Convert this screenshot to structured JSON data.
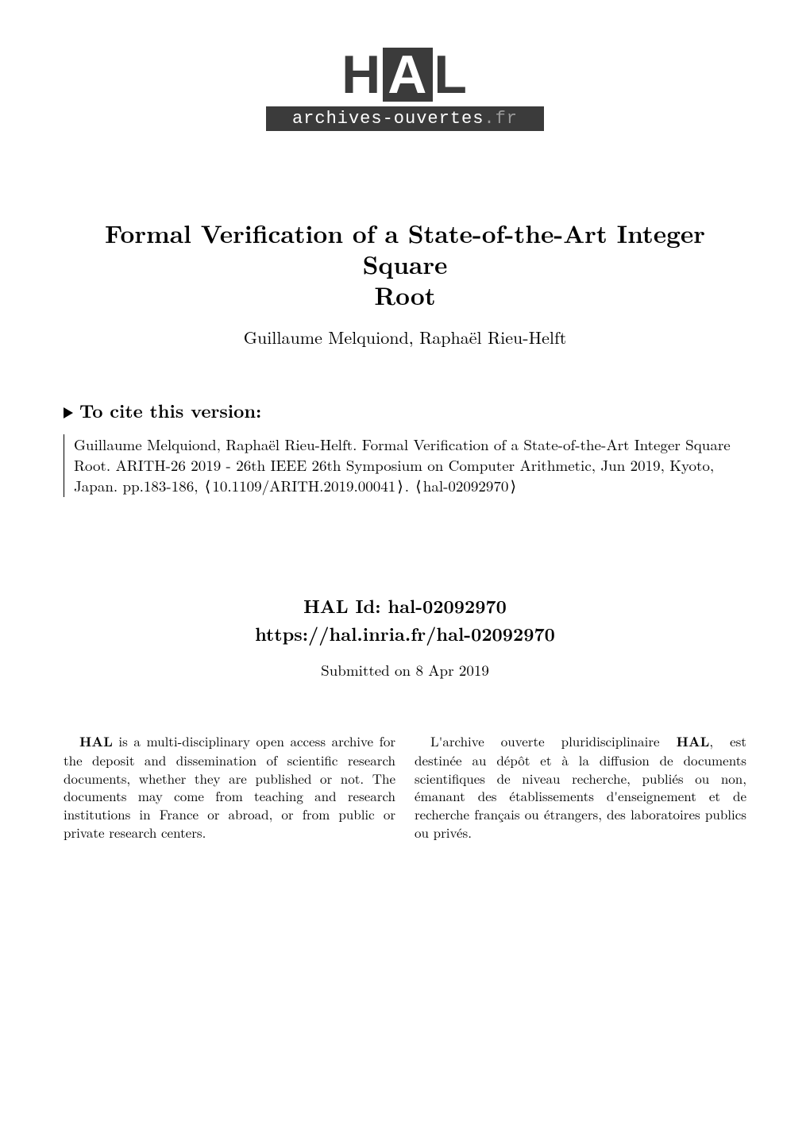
{
  "logo": {
    "letters_pre": "H",
    "letters_box": "A",
    "letters_post": "L",
    "tagline_main": "archives-ouvertes",
    "tagline_suffix": ".fr"
  },
  "title_line1": "Formal Verification of a State-of-the-Art Integer Square",
  "title_line2": "Root",
  "authors": "Guillaume Melquiond, Raphaël Rieu-Helft",
  "cite": {
    "heading": "To cite this version:",
    "body": "Guillaume Melquiond, Raphaël Rieu-Helft. Formal Verification of a State-of-the-Art Integer Square Root. ARITH-26 2019 - 26th IEEE 26th Symposium on Computer Arithmetic, Jun 2019, Kyoto, Japan. pp.183-186, ",
    "doi_open": "⟨",
    "doi": "10.1109/ARITH.2019.00041",
    "doi_close": "⟩",
    "sep": ". ",
    "halref_open": "⟨",
    "halref": "hal-02092970",
    "halref_close": "⟩"
  },
  "halid": {
    "label": "HAL Id: hal-02092970",
    "url": "https://hal.inria.fr/hal-02092970",
    "submitted": "Submitted on 8 Apr 2019"
  },
  "desc_en": {
    "lead_bold": "HAL",
    "lead_rest": " is a multi-disciplinary open access archive for the deposit and dissemination of scientific research documents, whether they are published or not. The documents may come from teaching and research institutions in France or abroad, or from public or private research centers."
  },
  "desc_fr": {
    "lead_pre": "L'archive ouverte pluridisciplinaire ",
    "lead_bold": "HAL",
    "lead_rest": ", est destinée au dépôt et à la diffusion de documents scientifiques de niveau recherche, publiés ou non, émanant des établissements d'enseignement et de recherche français ou étrangers, des laboratoires publics ou privés."
  }
}
